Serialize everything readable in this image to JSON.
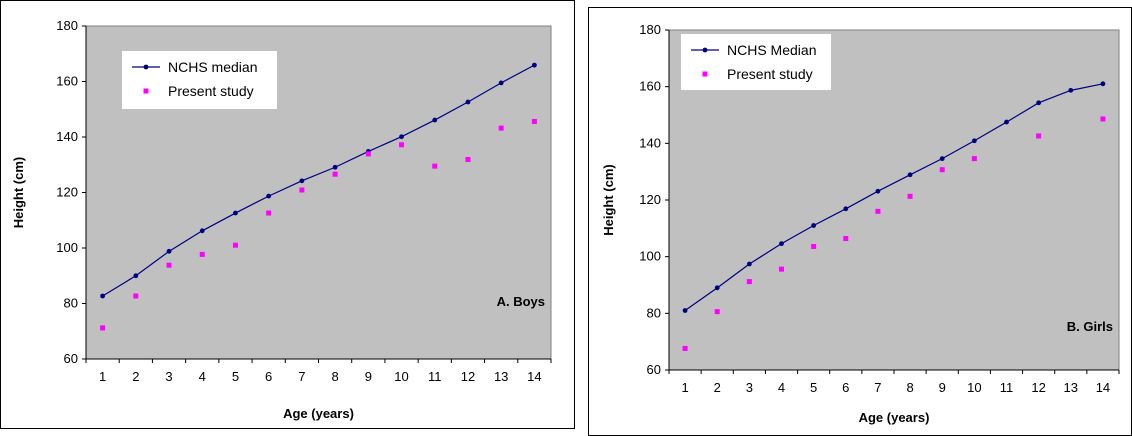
{
  "chart_data": [
    {
      "type": "line",
      "panel_label": "A. Boys",
      "xlabel": "Age (years)",
      "ylabel": "Height (cm)",
      "x": [
        1,
        2,
        3,
        4,
        5,
        6,
        7,
        8,
        9,
        10,
        11,
        12,
        13,
        14
      ],
      "xlim": [
        1,
        14
      ],
      "ylim": [
        60,
        180
      ],
      "yticks": [
        60,
        80,
        100,
        120,
        140,
        160,
        180
      ],
      "legend_position": "top-left",
      "grid": false,
      "background_color": "#C0C0C0",
      "series": [
        {
          "name": "NCHS median",
          "style": "line-with-markers",
          "color": "#000080",
          "values": [
            82.7,
            90.0,
            98.8,
            106.2,
            112.6,
            118.7,
            124.2,
            129.1,
            134.8,
            140.1,
            146.1,
            152.6,
            159.5,
            165.9
          ]
        },
        {
          "name": "Present study",
          "style": "markers",
          "color": "#FF00FF",
          "values": [
            71.2,
            82.7,
            93.8,
            97.7,
            101.0,
            112.6,
            120.9,
            126.6,
            133.9,
            137.2,
            129.5,
            131.9,
            143.2,
            145.6
          ]
        }
      ]
    },
    {
      "type": "line",
      "panel_label": "B. Girls",
      "xlabel": "Age (years)",
      "ylabel": "Height (cm)",
      "x": [
        1,
        2,
        3,
        4,
        5,
        6,
        7,
        8,
        9,
        10,
        11,
        12,
        13,
        14
      ],
      "xlim": [
        1,
        14
      ],
      "ylim": [
        60,
        180
      ],
      "yticks": [
        60,
        80,
        100,
        120,
        140,
        160,
        180
      ],
      "legend_position": "top-left",
      "grid": false,
      "background_color": "#C0C0C0",
      "series": [
        {
          "name": "NCHS Median",
          "style": "line-with-markers",
          "color": "#000080",
          "values": [
            81.0,
            89.0,
            97.4,
            104.6,
            111.0,
            116.9,
            123.1,
            128.9,
            134.6,
            140.9,
            147.5,
            154.3,
            158.7,
            161.0
          ]
        },
        {
          "name": "Present study",
          "style": "markers",
          "color": "#FF00FF",
          "values": [
            67.6,
            80.6,
            91.2,
            95.6,
            103.6,
            106.4,
            116.0,
            121.3,
            130.7,
            134.6,
            null,
            142.6,
            null,
            148.6
          ]
        }
      ]
    }
  ]
}
